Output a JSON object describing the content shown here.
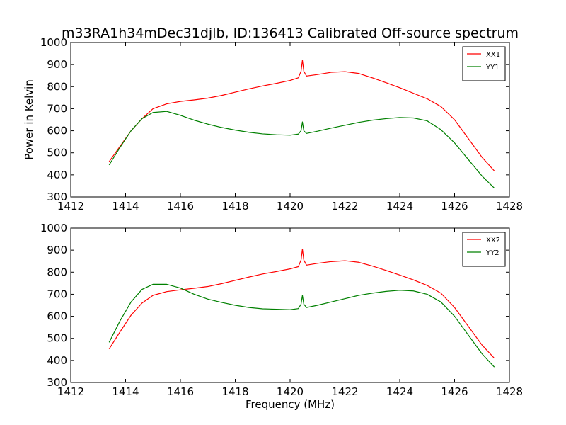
{
  "title": "m33RA1h34mDec31djlb, ID:136413 Calibrated Off-source spectrum",
  "chart_data": [
    {
      "type": "line",
      "panel": "top",
      "xlabel": "",
      "ylabel": "Power in Kelvin",
      "xlim": [
        1412,
        1428
      ],
      "ylim": [
        300,
        1000
      ],
      "xticks": [
        "1412",
        "1414",
        "1416",
        "1418",
        "1420",
        "1422",
        "1424",
        "1426",
        "1428"
      ],
      "yticks": [
        "300",
        "400",
        "500",
        "600",
        "700",
        "800",
        "900",
        "1000"
      ],
      "legend_position": "top-right",
      "grid": false,
      "series": [
        {
          "name": "XX1",
          "color": "#ff0000",
          "x": [
            1413.4,
            1413.8,
            1414.2,
            1414.6,
            1415.0,
            1415.5,
            1416.0,
            1416.5,
            1417.0,
            1417.5,
            1418.0,
            1418.5,
            1419.0,
            1419.5,
            1420.0,
            1420.3,
            1420.4,
            1420.45,
            1420.5,
            1420.6,
            1421.0,
            1421.5,
            1422.0,
            1422.5,
            1423.0,
            1423.5,
            1424.0,
            1424.5,
            1425.0,
            1425.5,
            1426.0,
            1426.5,
            1427.0,
            1427.45
          ],
          "values": [
            460,
            530,
            600,
            655,
            700,
            722,
            733,
            740,
            748,
            760,
            775,
            790,
            803,
            815,
            828,
            840,
            870,
            920,
            870,
            848,
            855,
            865,
            868,
            860,
            840,
            818,
            795,
            770,
            745,
            710,
            650,
            565,
            480,
            418
          ]
        },
        {
          "name": "YY1",
          "color": "#008000",
          "x": [
            1413.4,
            1413.8,
            1414.2,
            1414.6,
            1415.0,
            1415.5,
            1416.0,
            1416.5,
            1417.0,
            1417.5,
            1418.0,
            1418.5,
            1419.0,
            1419.5,
            1420.0,
            1420.3,
            1420.4,
            1420.45,
            1420.5,
            1420.6,
            1421.0,
            1421.5,
            1422.0,
            1422.5,
            1423.0,
            1423.5,
            1424.0,
            1424.5,
            1425.0,
            1425.5,
            1426.0,
            1426.5,
            1427.0,
            1427.45
          ],
          "values": [
            445,
            525,
            600,
            655,
            683,
            688,
            670,
            648,
            630,
            615,
            603,
            593,
            586,
            582,
            580,
            585,
            600,
            640,
            600,
            588,
            598,
            612,
            625,
            638,
            648,
            655,
            660,
            658,
            645,
            605,
            545,
            470,
            395,
            340
          ]
        }
      ]
    },
    {
      "type": "line",
      "panel": "bottom",
      "xlabel": "Frequency (MHz)",
      "ylabel": "",
      "xlim": [
        1412,
        1428
      ],
      "ylim": [
        300,
        1000
      ],
      "xticks": [
        "1412",
        "1414",
        "1416",
        "1418",
        "1420",
        "1422",
        "1424",
        "1426",
        "1428"
      ],
      "yticks": [
        "300",
        "400",
        "500",
        "600",
        "700",
        "800",
        "900",
        "1000"
      ],
      "legend_position": "top-right",
      "grid": false,
      "series": [
        {
          "name": "XX2",
          "color": "#ff0000",
          "x": [
            1413.4,
            1413.8,
            1414.2,
            1414.6,
            1415.0,
            1415.5,
            1416.0,
            1416.5,
            1417.0,
            1417.5,
            1418.0,
            1418.5,
            1419.0,
            1419.5,
            1420.0,
            1420.3,
            1420.4,
            1420.45,
            1420.5,
            1420.6,
            1421.0,
            1421.5,
            1422.0,
            1422.5,
            1423.0,
            1423.5,
            1424.0,
            1424.5,
            1425.0,
            1425.5,
            1426.0,
            1426.5,
            1427.0,
            1427.45
          ],
          "values": [
            452,
            530,
            605,
            660,
            695,
            712,
            720,
            727,
            735,
            748,
            763,
            778,
            792,
            803,
            815,
            825,
            855,
            905,
            855,
            832,
            840,
            848,
            852,
            845,
            828,
            808,
            787,
            765,
            740,
            705,
            640,
            555,
            470,
            410
          ]
        },
        {
          "name": "YY2",
          "color": "#008000",
          "x": [
            1413.4,
            1413.8,
            1414.2,
            1414.6,
            1415.0,
            1415.5,
            1416.0,
            1416.5,
            1417.0,
            1417.5,
            1418.0,
            1418.5,
            1419.0,
            1419.5,
            1420.0,
            1420.3,
            1420.4,
            1420.45,
            1420.5,
            1420.6,
            1421.0,
            1421.5,
            1422.0,
            1422.5,
            1423.0,
            1423.5,
            1424.0,
            1424.5,
            1425.0,
            1425.5,
            1426.0,
            1426.5,
            1427.0,
            1427.45
          ],
          "values": [
            482,
            580,
            665,
            722,
            745,
            745,
            728,
            700,
            678,
            663,
            650,
            640,
            634,
            632,
            630,
            635,
            655,
            695,
            655,
            640,
            650,
            665,
            680,
            695,
            705,
            713,
            718,
            715,
            700,
            665,
            600,
            515,
            430,
            370
          ]
        }
      ]
    }
  ]
}
